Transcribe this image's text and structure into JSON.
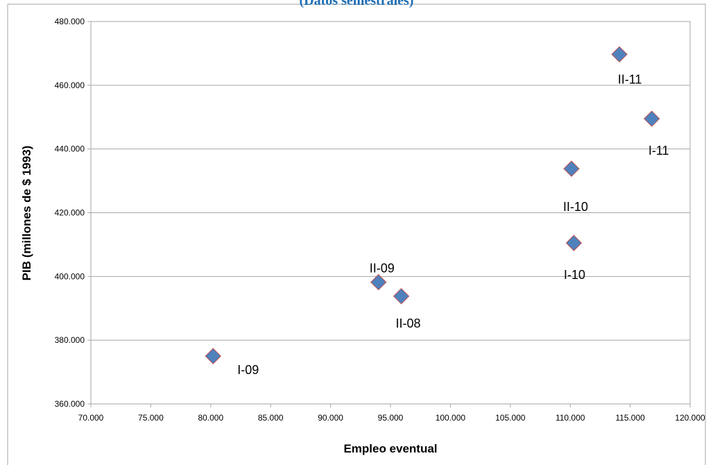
{
  "chart_data": {
    "type": "scatter",
    "title": "(Datos semestrales)",
    "xlabel": "Empleo eventual",
    "ylabel": "PIB (millones de $ 1993)",
    "xlim": [
      70000,
      120000
    ],
    "ylim": [
      360000,
      480000
    ],
    "x_ticks": [
      "70.000",
      "75.000",
      "80.000",
      "85.000",
      "90.000",
      "95.000",
      "100.000",
      "105.000",
      "110.000",
      "115.000",
      "120.000"
    ],
    "y_ticks": [
      "360.000",
      "380.000",
      "400.000",
      "420.000",
      "440.000",
      "460.000",
      "480.000"
    ],
    "grid": "horizontal",
    "marker": "diamond",
    "colors": {
      "marker_fill": "#4f81bd",
      "marker_edge": "#c0504d",
      "title": "#1f6fb5",
      "grid": "#a6a6a6"
    },
    "points": [
      {
        "label": "I-09",
        "x": 80200,
        "y": 375000
      },
      {
        "label": "II-09",
        "x": 94000,
        "y": 398200
      },
      {
        "label": "II-08",
        "x": 95900,
        "y": 393800
      },
      {
        "label": "I-10",
        "x": 110300,
        "y": 410500
      },
      {
        "label": "II-10",
        "x": 110100,
        "y": 433800
      },
      {
        "label": "II-11",
        "x": 114100,
        "y": 469700
      },
      {
        "label": "I-11",
        "x": 116800,
        "y": 449500
      }
    ]
  }
}
